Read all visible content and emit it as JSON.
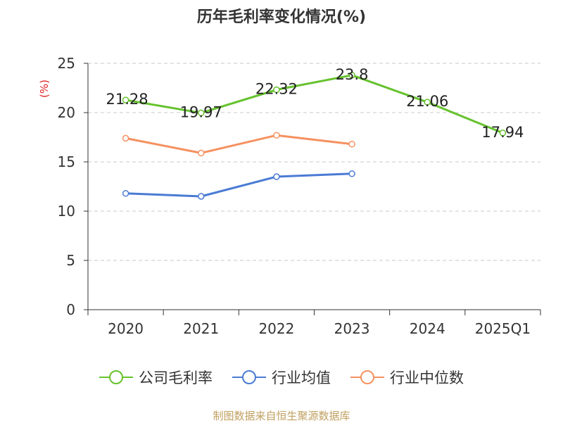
{
  "chart_data": {
    "type": "line",
    "title": "历年毛利率变化情况(%)",
    "ylabel": "(%)",
    "categories": [
      "2020",
      "2021",
      "2022",
      "2023",
      "2024",
      "2025Q1"
    ],
    "ylim": [
      0,
      25
    ],
    "yticks": [
      0,
      5,
      10,
      15,
      20,
      25
    ],
    "grid": true,
    "legend_position": "bottom",
    "series": [
      {
        "name": "公司毛利率",
        "color": "#66c22e",
        "values": [
          21.28,
          19.97,
          22.32,
          23.8,
          21.06,
          17.94
        ],
        "labels": [
          "21.28",
          "19.97",
          "22.32",
          "23.8",
          "21.06",
          "17.94"
        ]
      },
      {
        "name": "行业均值",
        "color": "#4a7bd4",
        "values": [
          11.8,
          11.5,
          13.5,
          13.8,
          null,
          null
        ]
      },
      {
        "name": "行业中位数",
        "color": "#f59160",
        "values": [
          17.4,
          15.9,
          17.7,
          16.8,
          null,
          null
        ]
      }
    ]
  },
  "footer": {
    "source": "制图数据来自恒生聚源数据库"
  }
}
